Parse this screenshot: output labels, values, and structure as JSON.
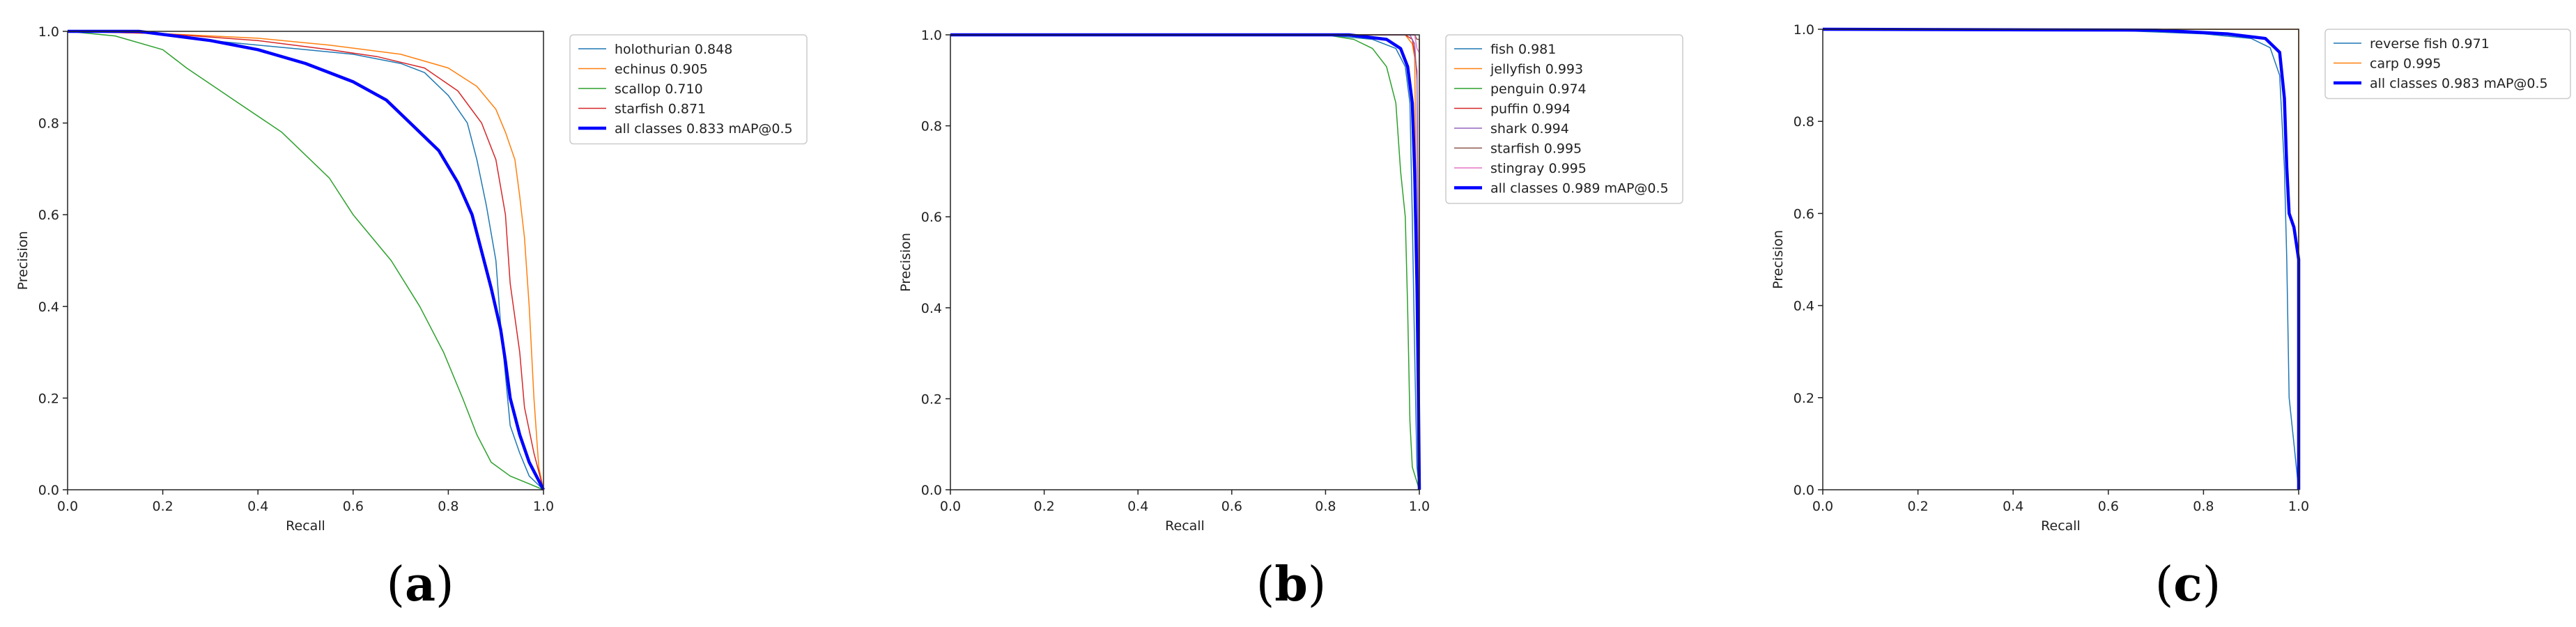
{
  "chart_data": [
    {
      "type": "line",
      "panel_label": "a",
      "xlabel": "Recall",
      "ylabel": "Precision",
      "xlim": [
        0,
        1
      ],
      "ylim": [
        0,
        1
      ],
      "xticks": [
        "0.0",
        "0.2",
        "0.4",
        "0.6",
        "0.8",
        "1.0"
      ],
      "yticks": [
        "0.0",
        "0.2",
        "0.4",
        "0.6",
        "0.8",
        "1.0"
      ],
      "grid": false,
      "legend_position": "outside-right-top",
      "series": [
        {
          "name": "holothurian 0.848",
          "color": "#1f77b4",
          "width": 1.5,
          "points": [
            [
              0,
              1
            ],
            [
              0.15,
              1
            ],
            [
              0.3,
              0.98
            ],
            [
              0.5,
              0.96
            ],
            [
              0.6,
              0.95
            ],
            [
              0.7,
              0.93
            ],
            [
              0.75,
              0.91
            ],
            [
              0.8,
              0.86
            ],
            [
              0.84,
              0.8
            ],
            [
              0.86,
              0.72
            ],
            [
              0.88,
              0.62
            ],
            [
              0.9,
              0.5
            ],
            [
              0.91,
              0.36
            ],
            [
              0.92,
              0.25
            ],
            [
              0.93,
              0.14
            ],
            [
              0.95,
              0.08
            ],
            [
              0.97,
              0.03
            ],
            [
              1,
              0
            ]
          ]
        },
        {
          "name": "echinus 0.905",
          "color": "#ff7f0e",
          "width": 1.5,
          "points": [
            [
              0,
              1
            ],
            [
              0.2,
              0.995
            ],
            [
              0.4,
              0.985
            ],
            [
              0.55,
              0.97
            ],
            [
              0.7,
              0.95
            ],
            [
              0.8,
              0.92
            ],
            [
              0.86,
              0.88
            ],
            [
              0.9,
              0.83
            ],
            [
              0.92,
              0.78
            ],
            [
              0.94,
              0.72
            ],
            [
              0.95,
              0.64
            ],
            [
              0.96,
              0.55
            ],
            [
              0.97,
              0.4
            ],
            [
              0.98,
              0.2
            ],
            [
              0.99,
              0.05
            ],
            [
              1,
              0
            ]
          ]
        },
        {
          "name": "scallop 0.710",
          "color": "#2ca02c",
          "width": 1.5,
          "points": [
            [
              0,
              1
            ],
            [
              0.1,
              0.99
            ],
            [
              0.2,
              0.96
            ],
            [
              0.25,
              0.92
            ],
            [
              0.35,
              0.85
            ],
            [
              0.45,
              0.78
            ],
            [
              0.55,
              0.68
            ],
            [
              0.6,
              0.6
            ],
            [
              0.68,
              0.5
            ],
            [
              0.74,
              0.4
            ],
            [
              0.79,
              0.3
            ],
            [
              0.83,
              0.2
            ],
            [
              0.86,
              0.12
            ],
            [
              0.89,
              0.06
            ],
            [
              0.93,
              0.03
            ],
            [
              1,
              0
            ]
          ]
        },
        {
          "name": "starfish 0.871",
          "color": "#d62728",
          "width": 1.5,
          "points": [
            [
              0,
              1
            ],
            [
              0.2,
              0.995
            ],
            [
              0.4,
              0.98
            ],
            [
              0.55,
              0.96
            ],
            [
              0.65,
              0.945
            ],
            [
              0.75,
              0.92
            ],
            [
              0.82,
              0.87
            ],
            [
              0.87,
              0.8
            ],
            [
              0.9,
              0.72
            ],
            [
              0.92,
              0.6
            ],
            [
              0.93,
              0.45
            ],
            [
              0.95,
              0.3
            ],
            [
              0.96,
              0.18
            ],
            [
              0.98,
              0.08
            ],
            [
              1,
              0
            ]
          ]
        },
        {
          "name": "all classes 0.833 mAP@0.5",
          "color": "#0000ff",
          "width": 4.5,
          "points": [
            [
              0,
              1
            ],
            [
              0.15,
              1
            ],
            [
              0.3,
              0.98
            ],
            [
              0.4,
              0.96
            ],
            [
              0.5,
              0.93
            ],
            [
              0.6,
              0.89
            ],
            [
              0.67,
              0.85
            ],
            [
              0.72,
              0.8
            ],
            [
              0.78,
              0.74
            ],
            [
              0.82,
              0.67
            ],
            [
              0.85,
              0.6
            ],
            [
              0.87,
              0.52
            ],
            [
              0.89,
              0.44
            ],
            [
              0.91,
              0.35
            ],
            [
              0.92,
              0.28
            ],
            [
              0.93,
              0.2
            ],
            [
              0.95,
              0.12
            ],
            [
              0.97,
              0.06
            ],
            [
              1,
              0
            ]
          ]
        }
      ]
    },
    {
      "type": "line",
      "panel_label": "b",
      "xlabel": "Recall",
      "ylabel": "Precision",
      "xlim": [
        0,
        1
      ],
      "ylim": [
        0,
        1
      ],
      "xticks": [
        "0.0",
        "0.2",
        "0.4",
        "0.6",
        "0.8",
        "1.0"
      ],
      "yticks": [
        "0.0",
        "0.2",
        "0.4",
        "0.6",
        "0.8",
        "1.0"
      ],
      "grid": false,
      "legend_position": "outside-right-top",
      "series": [
        {
          "name": "fish 0.981",
          "color": "#1f77b4",
          "width": 1.5,
          "points": [
            [
              0,
              1
            ],
            [
              0.8,
              1
            ],
            [
              0.9,
              0.99
            ],
            [
              0.95,
              0.97
            ],
            [
              0.97,
              0.93
            ],
            [
              0.98,
              0.85
            ],
            [
              0.985,
              0.6
            ],
            [
              0.99,
              0.3
            ],
            [
              0.995,
              0.05
            ],
            [
              1,
              0
            ]
          ]
        },
        {
          "name": "jellyfish 0.993",
          "color": "#ff7f0e",
          "width": 1.5,
          "points": [
            [
              0,
              1
            ],
            [
              0.97,
              1
            ],
            [
              0.985,
              0.98
            ],
            [
              0.99,
              0.95
            ],
            [
              0.995,
              0.5
            ],
            [
              1,
              0
            ]
          ]
        },
        {
          "name": "penguin 0.974",
          "color": "#2ca02c",
          "width": 1.5,
          "points": [
            [
              0,
              1
            ],
            [
              0.8,
              1
            ],
            [
              0.86,
              0.99
            ],
            [
              0.9,
              0.97
            ],
            [
              0.93,
              0.93
            ],
            [
              0.95,
              0.85
            ],
            [
              0.96,
              0.7
            ],
            [
              0.97,
              0.6
            ],
            [
              0.975,
              0.4
            ],
            [
              0.98,
              0.15
            ],
            [
              0.985,
              0.05
            ],
            [
              1,
              0
            ]
          ]
        },
        {
          "name": "puffin 0.994",
          "color": "#d62728",
          "width": 1.5,
          "points": [
            [
              0,
              1
            ],
            [
              0.97,
              1
            ],
            [
              0.985,
              0.99
            ],
            [
              0.99,
              0.96
            ],
            [
              0.995,
              0.92
            ],
            [
              0.998,
              0.4
            ],
            [
              1,
              0
            ]
          ]
        },
        {
          "name": "shark 0.994",
          "color": "#9467bd",
          "width": 1.5,
          "points": [
            [
              0,
              1
            ],
            [
              0.98,
              1
            ],
            [
              0.99,
              0.98
            ],
            [
              0.995,
              0.9
            ],
            [
              0.998,
              0.3
            ],
            [
              1,
              0
            ]
          ]
        },
        {
          "name": "starfish 0.995",
          "color": "#8c564b",
          "width": 1.5,
          "points": [
            [
              0,
              1
            ],
            [
              0.99,
              1
            ],
            [
              0.995,
              0.99
            ],
            [
              1,
              0.99
            ],
            [
              1,
              0
            ]
          ]
        },
        {
          "name": "stingray 0.995",
          "color": "#e377c2",
          "width": 1.5,
          "points": [
            [
              0,
              1
            ],
            [
              0.99,
              1
            ],
            [
              0.995,
              0.97
            ],
            [
              1,
              0.96
            ],
            [
              1,
              0
            ]
          ]
        },
        {
          "name": "all classes 0.989 mAP@0.5",
          "color": "#0000ff",
          "width": 4.5,
          "points": [
            [
              0,
              1
            ],
            [
              0.85,
              1
            ],
            [
              0.93,
              0.99
            ],
            [
              0.96,
              0.97
            ],
            [
              0.975,
              0.93
            ],
            [
              0.985,
              0.85
            ],
            [
              0.99,
              0.7
            ],
            [
              0.995,
              0.45
            ],
            [
              0.998,
              0.2
            ],
            [
              1,
              0
            ]
          ]
        }
      ]
    },
    {
      "type": "line",
      "panel_label": "c",
      "xlabel": "Recall",
      "ylabel": "Precision",
      "xlim": [
        0,
        1
      ],
      "ylim": [
        0,
        1
      ],
      "xticks": [
        "0.0",
        "0.2",
        "0.4",
        "0.6",
        "0.8",
        "1.0"
      ],
      "yticks": [
        "0.0",
        "0.2",
        "0.4",
        "0.6",
        "0.8",
        "1.0"
      ],
      "grid": false,
      "legend_position": "outside-right-top",
      "series": [
        {
          "name": "reverse fish 0.971",
          "color": "#1f77b4",
          "width": 1.5,
          "points": [
            [
              0,
              1
            ],
            [
              0.6,
              0.998
            ],
            [
              0.8,
              0.99
            ],
            [
              0.9,
              0.98
            ],
            [
              0.94,
              0.96
            ],
            [
              0.96,
              0.9
            ],
            [
              0.97,
              0.7
            ],
            [
              0.975,
              0.5
            ],
            [
              0.98,
              0.2
            ],
            [
              0.99,
              0.1
            ],
            [
              1,
              0
            ]
          ]
        },
        {
          "name": "carp 0.995",
          "color": "#ff7f0e",
          "width": 1.5,
          "points": [
            [
              0,
              1
            ],
            [
              0.995,
              1
            ],
            [
              1,
              1
            ],
            [
              1,
              0
            ]
          ]
        },
        {
          "name": "all classes 0.983 mAP@0.5",
          "color": "#0000ff",
          "width": 4.5,
          "points": [
            [
              0,
              1
            ],
            [
              0.7,
              0.998
            ],
            [
              0.85,
              0.99
            ],
            [
              0.93,
              0.98
            ],
            [
              0.96,
              0.95
            ],
            [
              0.97,
              0.85
            ],
            [
              0.975,
              0.7
            ],
            [
              0.98,
              0.6
            ],
            [
              0.99,
              0.57
            ],
            [
              1,
              0.5
            ],
            [
              1,
              0
            ]
          ]
        }
      ]
    }
  ]
}
